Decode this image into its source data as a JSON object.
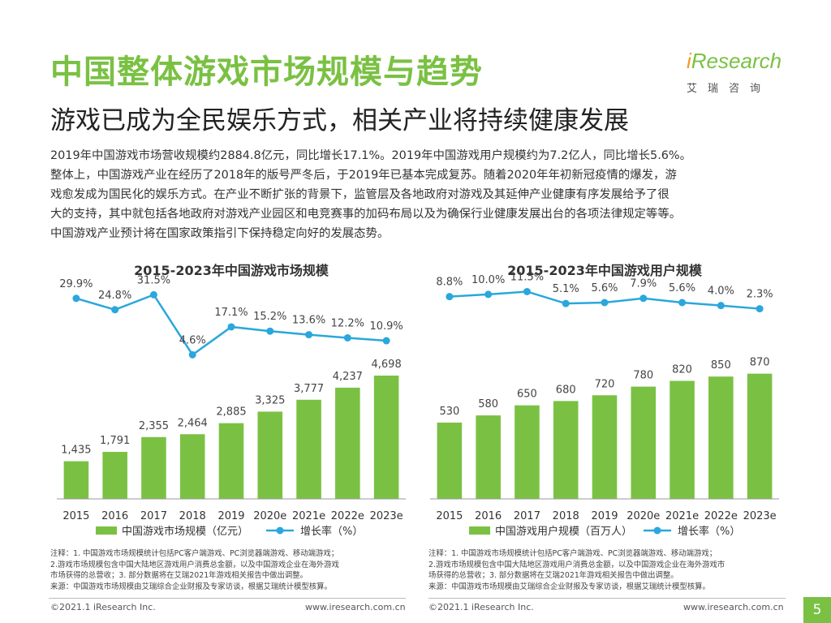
{
  "page": {
    "title": "中国整体游戏市场规模与趋势",
    "subtitle": "游戏已成为全民娱乐方式，相关产业将持续健康发展",
    "intro_lines": [
      "2019年中国游戏市场营收规模约2884.8亿元，同比增长17.1%。2019年中国游戏用户规模约为7.2亿人，同比增长5.6%。",
      "整体上，中国游戏产业在经历了2018年的版号严冬后，于2019年已基本完成复苏。随着2020年年初新冠疫情的爆发，游",
      "戏愈发成为国民化的娱乐方式。在产业不断扩张的背景下，监管层及各地政府对游戏及其延伸产业健康有序发展给予了很",
      "大的支持，其中就包括各地政府对游戏产业园区和电竞赛事的加码布局以及为确保行业健康发展出台的各项法律规定等等。",
      "中国游戏产业预计将在国家政策指引下保持稳定向好的发展态势。"
    ],
    "page_number": "5"
  },
  "logo": {
    "name": "iResearch",
    "name_dot": "i",
    "name_rest": "Research",
    "cn": "艾瑞咨询"
  },
  "colors": {
    "bar": "#7ac143",
    "line": "#2aa7dc",
    "title": "#7ac143"
  },
  "footer": {
    "copyright": "©2021.1 iResearch Inc.",
    "website": "www.iresearch.com.cn"
  },
  "chart_data": [
    {
      "type": "bar",
      "title": "2015-2023年中国游戏市场规模",
      "categories": [
        "2015",
        "2016",
        "2017",
        "2018",
        "2019",
        "2020e",
        "2021e",
        "2022e",
        "2023e"
      ],
      "series": [
        {
          "name": "中国游戏市场规模（亿元）",
          "type": "bar",
          "values": [
            1435,
            1791,
            2355,
            2464,
            2885,
            3325,
            3777,
            4237,
            4698
          ],
          "labels": [
            "1,435",
            "1,791",
            "2,355",
            "2,464",
            "2,885",
            "3,325",
            "3,777",
            "4,237",
            "4,698"
          ]
        },
        {
          "name": "增长率（%）",
          "type": "line",
          "values": [
            29.9,
            24.8,
            31.5,
            4.6,
            17.1,
            15.2,
            13.6,
            12.2,
            10.9
          ],
          "labels": [
            "29.9%",
            "24.8%",
            "31.5%",
            "4.6%",
            "17.1%",
            "15.2%",
            "13.6%",
            "12.2%",
            "10.9%"
          ]
        }
      ],
      "ylim_bar": [
        0,
        8500
      ],
      "ylim_line": [
        -60,
        40
      ],
      "legend": "bottom",
      "notes": [
        "注释：1. 中国游戏市场规模统计包括PC客户端游戏、PC浏览器端游戏、移动端游戏；",
        "2.游戏市场规模包含中国大陆地区游戏用户消费总金额，以及中国游戏企业在海外游戏",
        "市场获得的总营收；3. 部分数据将在艾瑞2021年游戏相关报告中做出调整。",
        "来源：中国游戏市场规模由艾瑞综合企业财报及专家访谈，根据艾瑞统计模型核算。"
      ]
    },
    {
      "type": "bar",
      "title": "2015-2023年中国游戏用户规模",
      "categories": [
        "2015",
        "2016",
        "2017",
        "2018",
        "2019",
        "2020e",
        "2021e",
        "2022e",
        "2023e"
      ],
      "series": [
        {
          "name": "中国游戏用户规模（百万人）",
          "type": "bar",
          "values": [
            530,
            580,
            650,
            680,
            720,
            780,
            820,
            850,
            870
          ],
          "labels": [
            "530",
            "580",
            "650",
            "680",
            "720",
            "780",
            "820",
            "850",
            "870"
          ]
        },
        {
          "name": "增长率（%）",
          "type": "line",
          "values": [
            8.8,
            10.0,
            11.5,
            5.1,
            5.6,
            7.9,
            5.6,
            4.0,
            2.3
          ],
          "labels": [
            "8.8%",
            "10.0%",
            "11.5%",
            "5.1%",
            "5.6%",
            "7.9%",
            "5.6%",
            "4.0%",
            "2.3%"
          ]
        }
      ],
      "ylim_bar": [
        0,
        1550
      ],
      "ylim_line": [
        -100,
        20
      ],
      "legend": "bottom",
      "notes": [
        "注释：1. 中国游戏市场规模统计包括PC客户端游戏、PC浏览器端游戏、移动端游戏；",
        "2.游戏市场规模包含中国大陆地区游戏用户消费总金额，以及中国游戏企业在海外游戏市",
        "场获得的总营收；3. 部分数据将在艾瑞2021年游戏相关报告中做出调整。",
        "来源：中国游戏市场规模由艾瑞综合企业财报及专家访谈，根据艾瑞统计模型核算。"
      ]
    }
  ]
}
